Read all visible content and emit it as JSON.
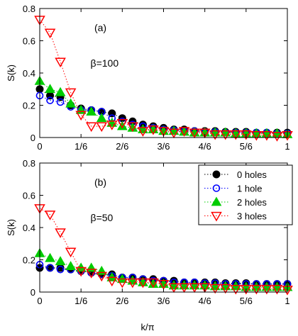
{
  "chart_data": [
    {
      "type": "line",
      "panel_label": "(a)",
      "annotation": "β=100",
      "xlabel": "",
      "ylabel": "S(k)",
      "xlim": [
        0,
        1
      ],
      "ylim": [
        0,
        0.8
      ],
      "grid": false,
      "x_ticks": [
        0,
        0.1667,
        0.3333,
        0.5,
        0.6667,
        0.8333,
        1
      ],
      "x_tick_labels": [
        "0",
        "1/6",
        "2/6",
        "3/6",
        "4/6",
        "5/6",
        "1"
      ],
      "y_ticks": [
        0,
        0.2,
        0.4,
        0.6,
        0.8
      ],
      "y_tick_labels": [
        "0",
        "0.2",
        "0.4",
        "0.6",
        "0.8"
      ],
      "x": [
        0.0,
        0.0417,
        0.0833,
        0.125,
        0.1667,
        0.2083,
        0.25,
        0.2917,
        0.3333,
        0.375,
        0.4167,
        0.4583,
        0.5,
        0.5417,
        0.5833,
        0.625,
        0.6667,
        0.7083,
        0.75,
        0.7917,
        0.8333,
        0.875,
        0.9167,
        0.9583,
        1.0
      ],
      "series": [
        {
          "name": "0 holes",
          "values": [
            0.3,
            0.26,
            0.25,
            0.2,
            0.18,
            0.17,
            0.16,
            0.15,
            0.12,
            0.1,
            0.08,
            0.07,
            0.06,
            0.05,
            0.05,
            0.04,
            0.04,
            0.04,
            0.035,
            0.035,
            0.035,
            0.03,
            0.03,
            0.03,
            0.03
          ]
        },
        {
          "name": "1 hole",
          "values": [
            0.26,
            0.23,
            0.22,
            0.19,
            0.17,
            0.17,
            0.16,
            0.12,
            0.1,
            0.08,
            0.07,
            0.06,
            0.05,
            0.045,
            0.04,
            0.04,
            0.035,
            0.035,
            0.03,
            0.03,
            0.03,
            0.03,
            0.03,
            0.025,
            0.025
          ]
        },
        {
          "name": "2 holes",
          "values": [
            0.35,
            0.3,
            0.28,
            0.21,
            0.17,
            0.16,
            0.12,
            0.09,
            0.07,
            0.06,
            0.05,
            0.05,
            0.04,
            0.04,
            0.035,
            0.03,
            0.03,
            0.03,
            0.03,
            0.025,
            0.025,
            0.025,
            0.025,
            0.025,
            0.02
          ]
        },
        {
          "name": "3 holes",
          "values": [
            0.73,
            0.65,
            0.47,
            0.28,
            0.14,
            0.07,
            0.07,
            0.08,
            0.09,
            0.07,
            0.04,
            0.05,
            0.04,
            0.03,
            0.04,
            0.03,
            0.03,
            0.02,
            0.02,
            0.02,
            0.02,
            0.015,
            0.015,
            0.01,
            0.015
          ]
        }
      ]
    },
    {
      "type": "line",
      "panel_label": "(b)",
      "annotation": "β=50",
      "xlabel": "k/π",
      "ylabel": "S(k)",
      "xlim": [
        0,
        1
      ],
      "ylim": [
        0,
        0.8
      ],
      "grid": false,
      "legend_position": "top-right",
      "x_ticks": [
        0,
        0.1667,
        0.3333,
        0.5,
        0.6667,
        0.8333,
        1
      ],
      "x_tick_labels": [
        "0",
        "1/6",
        "2/6",
        "3/6",
        "4/6",
        "5/6",
        "1"
      ],
      "y_ticks": [
        0,
        0.2,
        0.4,
        0.6,
        0.8
      ],
      "y_tick_labels": [
        "0",
        "0.2",
        "0.4",
        "0.6",
        "0.8"
      ],
      "x": [
        0.0,
        0.0417,
        0.0833,
        0.125,
        0.1667,
        0.2083,
        0.25,
        0.2917,
        0.3333,
        0.375,
        0.4167,
        0.4583,
        0.5,
        0.5417,
        0.5833,
        0.625,
        0.6667,
        0.7083,
        0.75,
        0.7917,
        0.8333,
        0.875,
        0.9167,
        0.9583,
        1.0
      ],
      "series": [
        {
          "name": "0 holes",
          "values": [
            0.15,
            0.15,
            0.15,
            0.14,
            0.13,
            0.12,
            0.11,
            0.11,
            0.09,
            0.09,
            0.08,
            0.08,
            0.07,
            0.07,
            0.06,
            0.06,
            0.06,
            0.06,
            0.055,
            0.055,
            0.055,
            0.05,
            0.05,
            0.05,
            0.05
          ]
        },
        {
          "name": "1 hole",
          "values": [
            0.17,
            0.15,
            0.14,
            0.14,
            0.13,
            0.12,
            0.11,
            0.1,
            0.09,
            0.09,
            0.08,
            0.07,
            0.07,
            0.06,
            0.06,
            0.06,
            0.055,
            0.055,
            0.05,
            0.05,
            0.05,
            0.05,
            0.05,
            0.05,
            0.05
          ]
        },
        {
          "name": "2 holes",
          "values": [
            0.24,
            0.21,
            0.19,
            0.16,
            0.15,
            0.15,
            0.13,
            0.09,
            0.08,
            0.07,
            0.06,
            0.05,
            0.05,
            0.04,
            0.04,
            0.04,
            0.04,
            0.035,
            0.035,
            0.035,
            0.03,
            0.03,
            0.03,
            0.03,
            0.03
          ]
        },
        {
          "name": "3 holes",
          "values": [
            0.52,
            0.48,
            0.37,
            0.25,
            0.13,
            0.12,
            0.1,
            0.07,
            0.06,
            0.06,
            0.06,
            0.06,
            0.05,
            0.03,
            0.03,
            0.03,
            0.03,
            0.025,
            0.025,
            0.02,
            0.02,
            0.02,
            0.02,
            0.02,
            0.015
          ]
        }
      ]
    }
  ],
  "series_styles": [
    {
      "name": "0 holes",
      "marker": "filled-circle",
      "color": "#000000"
    },
    {
      "name": "1 hole",
      "marker": "open-circle",
      "color": "#0000ff"
    },
    {
      "name": "2 holes",
      "marker": "filled-triangle-up",
      "color": "#00cc00"
    },
    {
      "name": "3 holes",
      "marker": "open-triangle-down",
      "color": "#ff0000"
    }
  ]
}
